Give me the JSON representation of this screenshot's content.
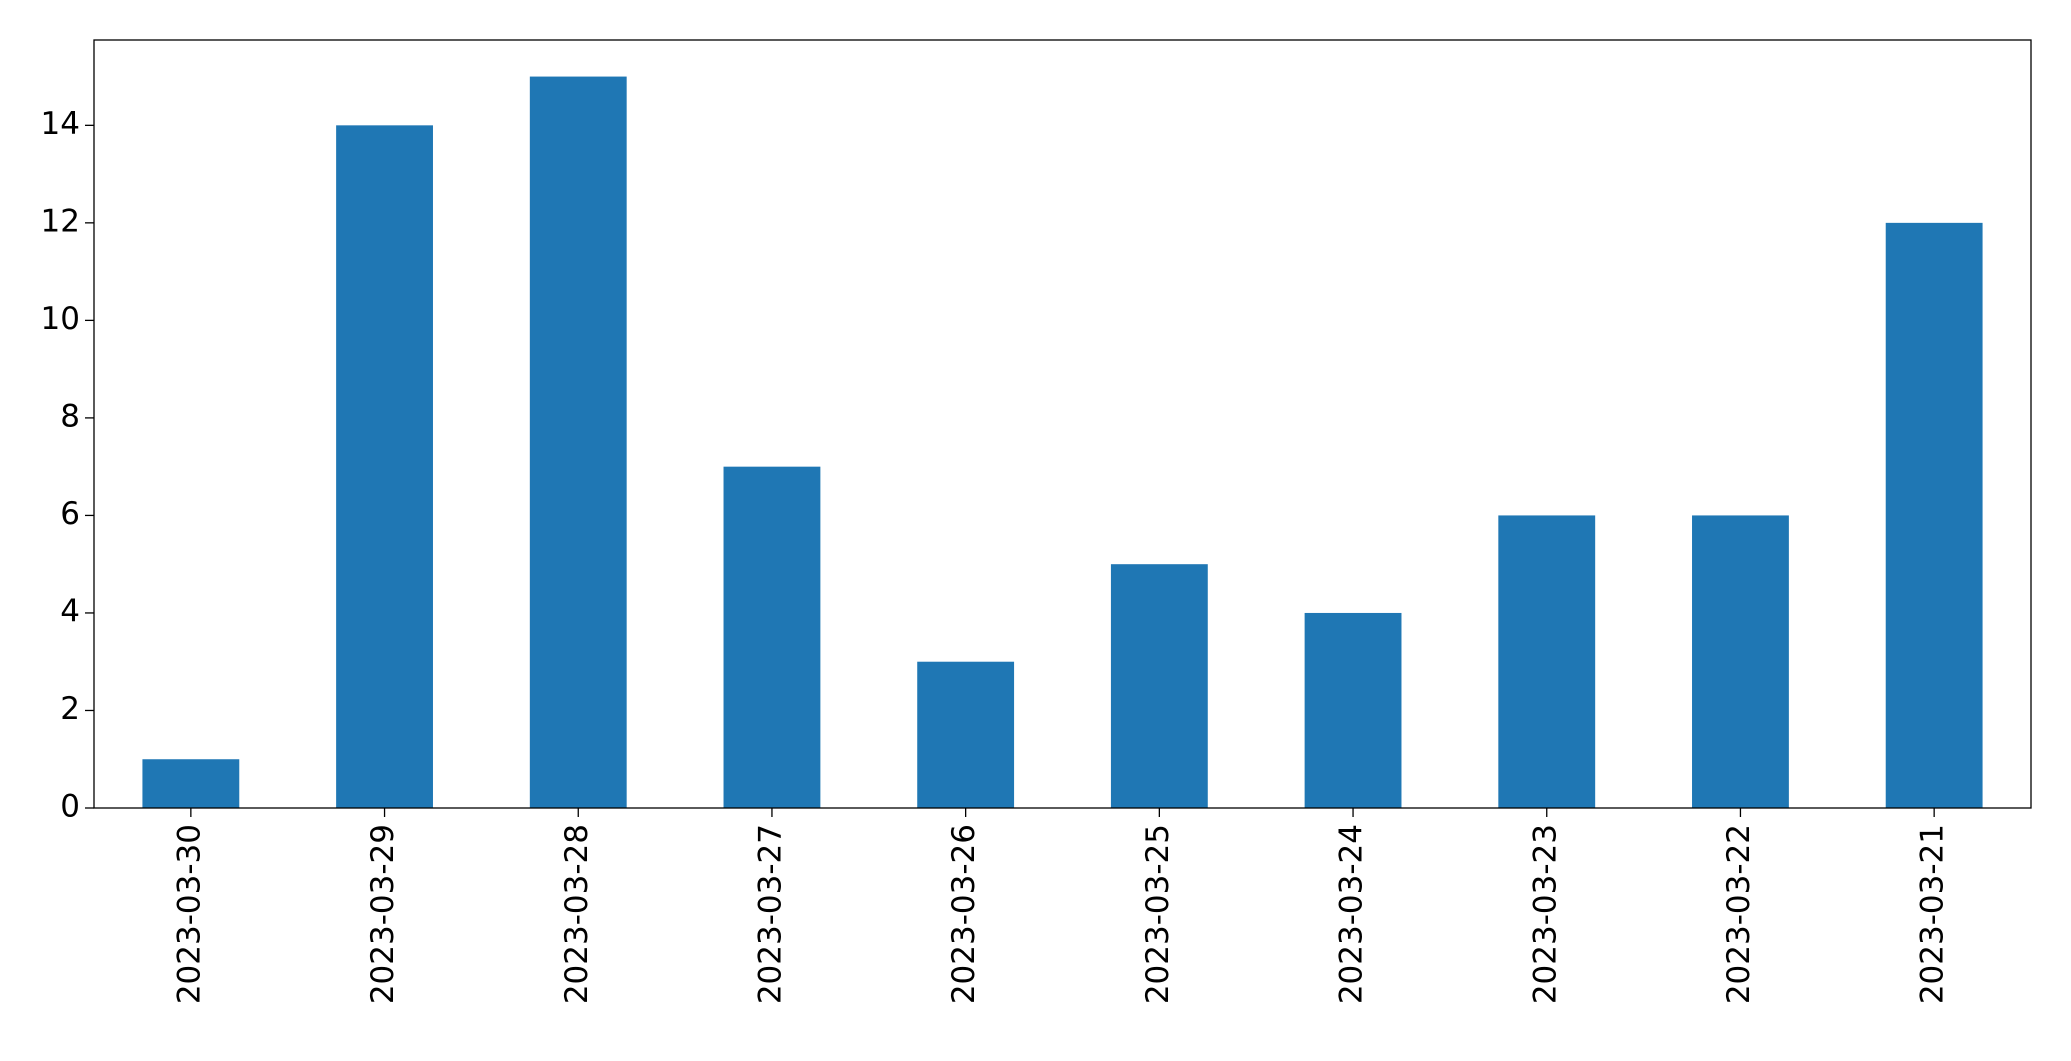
{
  "chart_data": {
    "type": "bar",
    "categories": [
      "2023-03-30",
      "2023-03-29",
      "2023-03-28",
      "2023-03-27",
      "2023-03-26",
      "2023-03-25",
      "2023-03-24",
      "2023-03-23",
      "2023-03-22",
      "2023-03-21"
    ],
    "values": [
      1,
      14,
      15,
      7,
      3,
      5,
      4,
      6,
      6,
      12
    ],
    "color": "#1f77b4",
    "ylim": [
      0,
      15.75
    ],
    "yticks": [
      0,
      2,
      4,
      6,
      8,
      10,
      12,
      14
    ],
    "grid": false
  }
}
